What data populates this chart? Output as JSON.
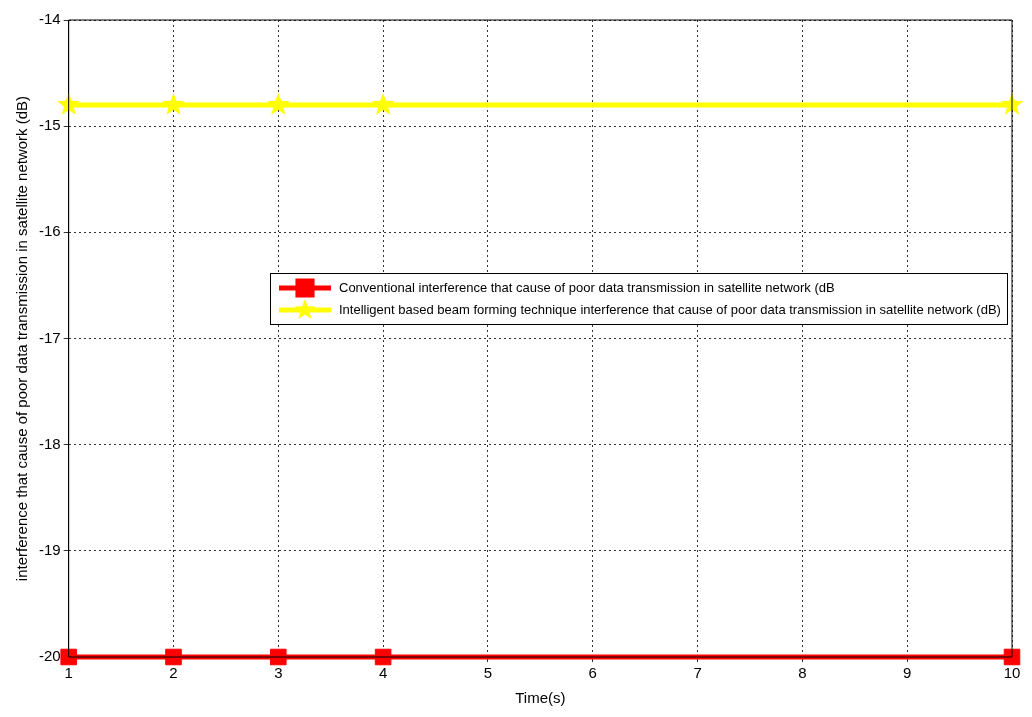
{
  "chart_data": {
    "type": "line",
    "xlabel": "Time(s)",
    "ylabel": "interference that cause of poor data transmission in satellite network (dB)",
    "x": [
      1,
      2,
      3,
      4,
      10
    ],
    "series": [
      {
        "name": "Conventional interference that cause of poor data transmission in satellite network (dB",
        "color": "#ff0000",
        "marker": "square",
        "values": [
          -20,
          -20,
          -20,
          -20,
          -20
        ]
      },
      {
        "name": "Intelligent based beam forming technique interference that cause of poor data transmission in satellite network (dB)",
        "color": "#ffff00",
        "marker": "star",
        "values": [
          -14.8,
          -14.8,
          -14.8,
          -14.8,
          -14.8
        ]
      }
    ],
    "xlim": [
      1,
      10
    ],
    "xticks": [
      1,
      2,
      3,
      4,
      5,
      6,
      7,
      8,
      9,
      10
    ],
    "ylim": [
      -20,
      -14
    ],
    "yticks": [
      -20,
      -19,
      -18,
      -17,
      -16,
      -15,
      -14
    ],
    "grid": true,
    "legend": "right",
    "line_style": "solid"
  }
}
